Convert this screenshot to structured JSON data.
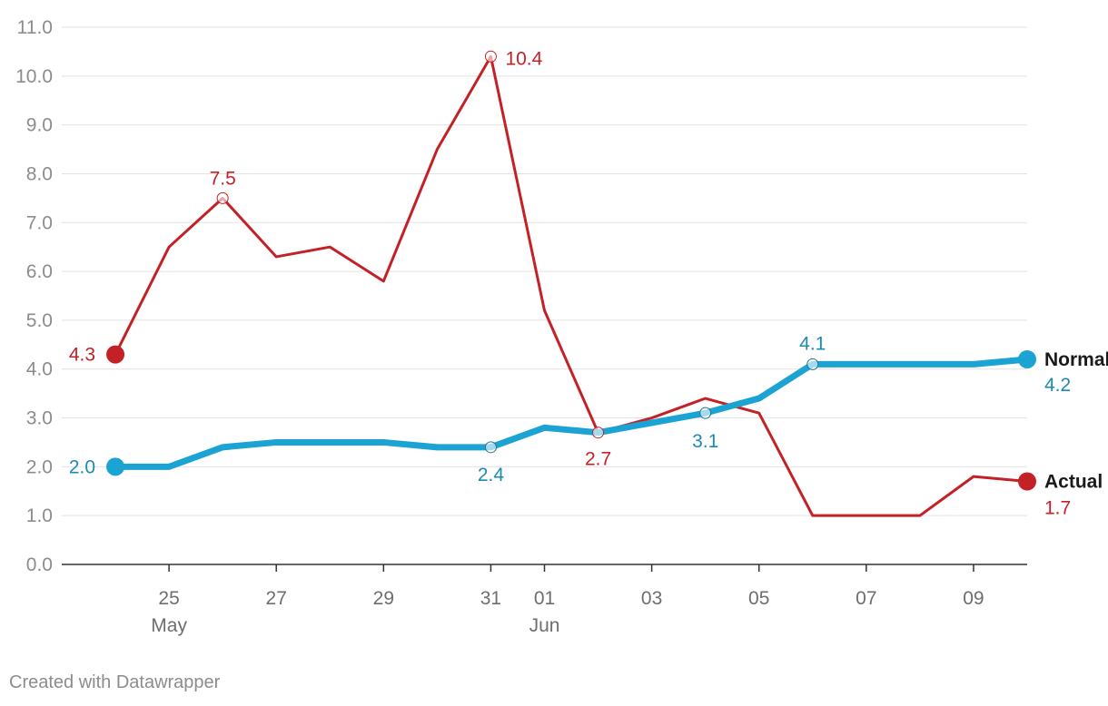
{
  "chart_data": {
    "type": "line",
    "ylim": [
      0,
      11
    ],
    "y_ticks": [
      "0.0",
      "1.0",
      "2.0",
      "3.0",
      "4.0",
      "5.0",
      "6.0",
      "7.0",
      "8.0",
      "9.0",
      "10.0",
      "11.0"
    ],
    "x_ticks": [
      {
        "date": "2020-05-25",
        "label": "25",
        "sublabel": "May"
      },
      {
        "date": "2020-05-27",
        "label": "27",
        "sublabel": ""
      },
      {
        "date": "2020-05-29",
        "label": "29",
        "sublabel": ""
      },
      {
        "date": "2020-05-31",
        "label": "31",
        "sublabel": ""
      },
      {
        "date": "2020-06-01",
        "label": "01",
        "sublabel": "Jun"
      },
      {
        "date": "2020-06-03",
        "label": "03",
        "sublabel": ""
      },
      {
        "date": "2020-06-05",
        "label": "05",
        "sublabel": ""
      },
      {
        "date": "2020-06-07",
        "label": "07",
        "sublabel": ""
      },
      {
        "date": "2020-06-09",
        "label": "09",
        "sublabel": ""
      }
    ],
    "xlim": [
      "2020-05-23",
      "2020-06-10"
    ],
    "grid": true,
    "series": [
      {
        "name": "Normal",
        "color": "#1ba3d3",
        "label_color": "#1a8bb3",
        "x": [
          "2020-05-24",
          "2020-05-25",
          "2020-05-26",
          "2020-05-27",
          "2020-05-28",
          "2020-05-29",
          "2020-05-30",
          "2020-05-31",
          "2020-06-01",
          "2020-06-02",
          "2020-06-03",
          "2020-06-04",
          "2020-06-05",
          "2020-06-06",
          "2020-06-07",
          "2020-06-08",
          "2020-06-09",
          "2020-06-10"
        ],
        "values": [
          2.0,
          2.0,
          2.4,
          2.5,
          2.5,
          2.5,
          2.4,
          2.4,
          2.8,
          2.7,
          2.9,
          3.1,
          3.4,
          4.1,
          4.1,
          4.1,
          4.1,
          4.2
        ],
        "annotations": [
          {
            "x": "2020-05-24",
            "text": "2.0"
          },
          {
            "x": "2020-05-31",
            "text": "2.4"
          },
          {
            "x": "2020-06-04",
            "text": "3.1"
          },
          {
            "x": "2020-06-06",
            "text": "4.1"
          },
          {
            "x": "2020-06-10",
            "text": "4.2"
          }
        ]
      },
      {
        "name": "Actual",
        "color": "#c42127",
        "label_color": "#c42127",
        "x": [
          "2020-05-24",
          "2020-05-25",
          "2020-05-26",
          "2020-05-27",
          "2020-05-28",
          "2020-05-29",
          "2020-05-30",
          "2020-05-31",
          "2020-06-01",
          "2020-06-02",
          "2020-06-03",
          "2020-06-04",
          "2020-06-05",
          "2020-06-06",
          "2020-06-07",
          "2020-06-08",
          "2020-06-09",
          "2020-06-10"
        ],
        "values": [
          4.3,
          6.5,
          7.5,
          6.3,
          6.5,
          5.8,
          8.5,
          10.4,
          5.2,
          2.7,
          3.0,
          3.4,
          3.1,
          1.0,
          1.0,
          1.0,
          1.8,
          1.7
        ],
        "annotations": [
          {
            "x": "2020-05-24",
            "text": "4.3"
          },
          {
            "x": "2020-05-26",
            "text": "7.5"
          },
          {
            "x": "2020-05-31",
            "text": "10.4"
          },
          {
            "x": "2020-06-02",
            "text": "2.7"
          },
          {
            "x": "2020-06-10",
            "text": "1.7"
          }
        ]
      }
    ]
  },
  "footer": {
    "credit": "Created with Datawrapper"
  }
}
